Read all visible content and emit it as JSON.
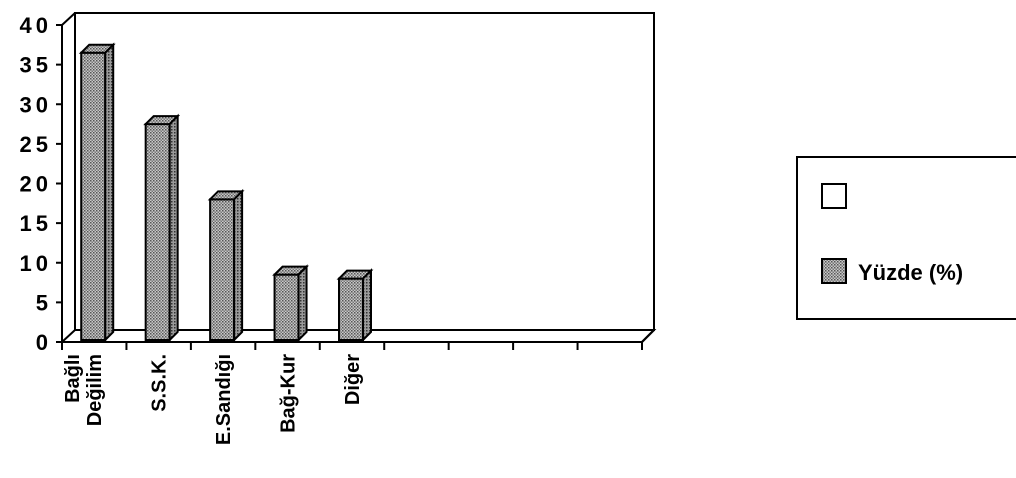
{
  "chart_data": {
    "type": "bar",
    "categories": [
      [
        "Bağlı",
        "Değilim"
      ],
      [
        "S.S.K."
      ],
      [
        "E.Sandığı"
      ],
      [
        "Bağ-Kur"
      ],
      [
        "Diğer"
      ]
    ],
    "series": [
      {
        "name": "",
        "values": [
          null,
          null,
          null,
          null,
          null
        ],
        "color": "#ffffff"
      },
      {
        "name": "Yüzde (%)",
        "values": [
          36.5,
          27.5,
          18,
          8.5,
          8
        ],
        "color": "#9a9a9a"
      }
    ],
    "y_ticks": [
      "0",
      "5",
      "10",
      "15",
      "20",
      "25",
      "30",
      "35",
      "40"
    ],
    "ylim": [
      0,
      40
    ],
    "empty_slots": 4,
    "grid": false,
    "legend_position": "right",
    "style": "3d-bar"
  }
}
